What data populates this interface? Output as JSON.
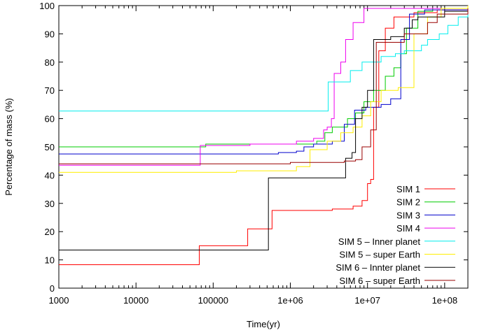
{
  "chart_data": {
    "type": "line",
    "xlabel": "Time(yr)",
    "ylabel": "Percentage of mass (%)",
    "xscale": "log",
    "xlim": [
      1000,
      200000000
    ],
    "ylim": [
      0,
      100
    ],
    "grid": false,
    "legend_position": "bottom-right",
    "xticks": [
      {
        "value": 1000,
        "label": "1000"
      },
      {
        "value": 10000,
        "label": "10000"
      },
      {
        "value": 100000,
        "label": "100000"
      },
      {
        "value": 1000000,
        "label": "1e+06"
      },
      {
        "value": 10000000,
        "label": "1e+07"
      },
      {
        "value": 100000000,
        "label": "1e+08"
      }
    ],
    "yticks": [
      0,
      10,
      20,
      30,
      40,
      50,
      60,
      70,
      80,
      90,
      100
    ],
    "series": [
      {
        "name": "SIM 1",
        "color": "#ff0000",
        "points": [
          [
            1000,
            8.3
          ],
          [
            60000,
            8.3
          ],
          [
            66000,
            15
          ],
          [
            250000,
            15
          ],
          [
            280000,
            21
          ],
          [
            500000,
            21
          ],
          [
            580000,
            27.5
          ],
          [
            1000000,
            27.5
          ],
          [
            3500000,
            28
          ],
          [
            6500000,
            29
          ],
          [
            8500000,
            31
          ],
          [
            10000000,
            37
          ],
          [
            11000000,
            38.5
          ],
          [
            12000000,
            64
          ],
          [
            14000000,
            84
          ],
          [
            17000000,
            92
          ],
          [
            22000000,
            96
          ],
          [
            40000000,
            97.5
          ],
          [
            80000000,
            98.5
          ],
          [
            200000000,
            100
          ]
        ]
      },
      {
        "name": "SIM 2",
        "color": "#00cc00",
        "points": [
          [
            1000,
            50
          ],
          [
            30000,
            50
          ],
          [
            80000,
            51
          ],
          [
            300000,
            51
          ],
          [
            1000000,
            51
          ],
          [
            2200000,
            52
          ],
          [
            2800000,
            55
          ],
          [
            3500000,
            57
          ],
          [
            5500000,
            60
          ],
          [
            7000000,
            62
          ],
          [
            9000000,
            66
          ],
          [
            12000000,
            70
          ],
          [
            17000000,
            75
          ],
          [
            22000000,
            78
          ],
          [
            27000000,
            83
          ],
          [
            32000000,
            92
          ],
          [
            45000000,
            98
          ],
          [
            70000000,
            99
          ],
          [
            200000000,
            100
          ]
        ]
      },
      {
        "name": "SIM 3",
        "color": "#0000cc",
        "points": [
          [
            1000,
            47.5
          ],
          [
            700000,
            48
          ],
          [
            1200000,
            48.5
          ],
          [
            1500000,
            50
          ],
          [
            2000000,
            51
          ],
          [
            3500000,
            52
          ],
          [
            5000000,
            58
          ],
          [
            6800000,
            63
          ],
          [
            9500000,
            64
          ],
          [
            15000000,
            65
          ],
          [
            20000000,
            67
          ],
          [
            27000000,
            88
          ],
          [
            35000000,
            97
          ],
          [
            55000000,
            98.5
          ],
          [
            200000000,
            100
          ]
        ]
      },
      {
        "name": "SIM 4",
        "color": "#ee00ee",
        "points": [
          [
            1000,
            43.5
          ],
          [
            58000,
            43.5
          ],
          [
            68000,
            50.5
          ],
          [
            300000,
            51
          ],
          [
            1200000,
            52
          ],
          [
            2000000,
            53
          ],
          [
            2700000,
            56
          ],
          [
            3000000,
            57
          ],
          [
            3400000,
            60
          ],
          [
            3700000,
            76
          ],
          [
            4500000,
            80
          ],
          [
            5200000,
            88
          ],
          [
            6500000,
            94
          ],
          [
            9000000,
            99
          ],
          [
            200000000,
            100
          ]
        ]
      },
      {
        "name": "SIM 5 – Inner planet",
        "color": "#00eeee",
        "points": [
          [
            1000,
            62.7
          ],
          [
            2900000,
            62.7
          ],
          [
            3100000,
            73
          ],
          [
            6000000,
            77
          ],
          [
            8500000,
            80
          ],
          [
            15000000,
            82
          ],
          [
            23000000,
            83
          ],
          [
            30000000,
            84
          ],
          [
            50000000,
            86
          ],
          [
            60000000,
            88
          ],
          [
            85000000,
            90
          ],
          [
            110000000,
            93
          ],
          [
            150000000,
            96
          ],
          [
            200000000,
            97
          ]
        ]
      },
      {
        "name": "SIM 5 – super Earth",
        "color": "#ffee00",
        "points": [
          [
            1000,
            41
          ],
          [
            200000,
            41.5
          ],
          [
            1200000,
            43
          ],
          [
            1800000,
            49
          ],
          [
            3000000,
            52
          ],
          [
            4500000,
            55
          ],
          [
            6500000,
            57
          ],
          [
            8500000,
            61
          ],
          [
            11000000,
            66
          ],
          [
            15000000,
            70
          ],
          [
            25000000,
            71
          ],
          [
            40000000,
            90
          ],
          [
            60000000,
            96
          ],
          [
            90000000,
            99
          ],
          [
            200000000,
            100
          ]
        ]
      },
      {
        "name": "SIM 6 – Innter planet",
        "color": "#000000",
        "points": [
          [
            1000,
            13.5
          ],
          [
            480000,
            13.5
          ],
          [
            520000,
            39
          ],
          [
            4000000,
            39
          ],
          [
            5200000,
            46
          ],
          [
            6300000,
            48
          ],
          [
            7000000,
            60
          ],
          [
            8500000,
            64
          ],
          [
            10000000,
            70
          ],
          [
            12000000,
            88
          ],
          [
            20000000,
            89
          ],
          [
            30000000,
            92
          ],
          [
            38000000,
            95
          ],
          [
            45000000,
            96
          ],
          [
            70000000,
            96
          ],
          [
            100000000,
            98
          ],
          [
            200000000,
            99
          ]
        ]
      },
      {
        "name": "SIM 6 – super Earth",
        "color": "#990000",
        "points": [
          [
            1000,
            44
          ],
          [
            1000000,
            44.5
          ],
          [
            5000000,
            45
          ],
          [
            7000000,
            45.5
          ],
          [
            8500000,
            50
          ],
          [
            11000000,
            56
          ],
          [
            13000000,
            87
          ],
          [
            30000000,
            90
          ],
          [
            60000000,
            94
          ],
          [
            80000000,
            97
          ],
          [
            200000000,
            99
          ]
        ]
      }
    ]
  }
}
